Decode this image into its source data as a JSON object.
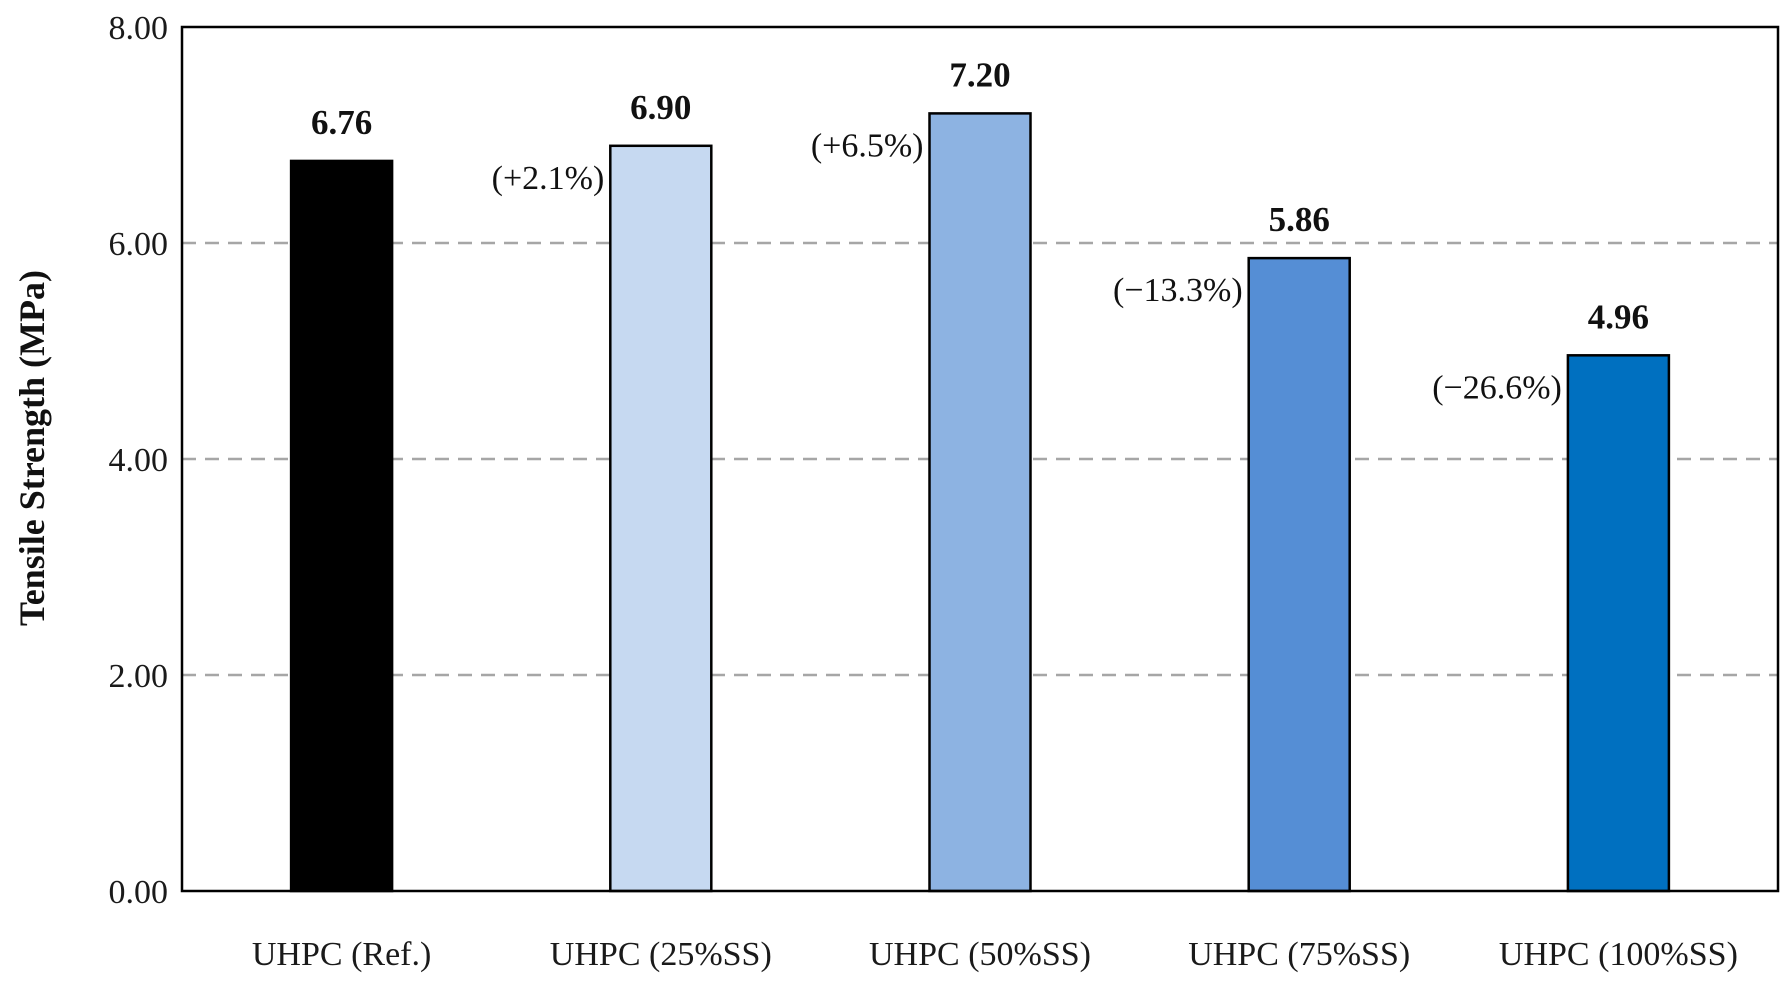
{
  "chart_data": {
    "type": "bar",
    "title": "",
    "xlabel": "",
    "ylabel": "Tensile Strength (MPa)",
    "ylim": [
      0,
      8
    ],
    "yticks": [
      "0.00",
      "2.00",
      "4.00",
      "6.00",
      "8.00"
    ],
    "grid": "horizontal dashed at 2.00, 4.00, 6.00",
    "legend": "none",
    "categories": [
      "UHPC (Ref.)",
      "UHPC (25%SS)",
      "UHPC (50%SS)",
      "UHPC (75%SS)",
      "UHPC (100%SS)"
    ],
    "values": [
      6.76,
      6.9,
      7.2,
      5.86,
      4.96
    ],
    "value_labels": [
      "6.76",
      "6.90",
      "7.20",
      "5.86",
      "4.96"
    ],
    "change_labels": [
      "",
      "(+2.1%)",
      "(+6.5%)",
      "(−13.3%)",
      "(−26.6%)"
    ],
    "colors": [
      "#000000",
      "#c6d9f1",
      "#8db3e2",
      "#558ed5",
      "#0070c0"
    ]
  }
}
